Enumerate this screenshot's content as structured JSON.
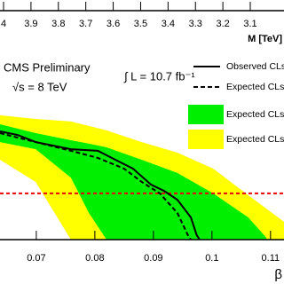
{
  "chart_data": {
    "type": "line",
    "xlabel": "β",
    "x2label": "M [TeV]",
    "experiment": "CMS Preliminary",
    "energy": "√s = 8 TeV",
    "luminosity": "∫ L = 10.7 fb⁻¹",
    "xlim": [
      0.0638,
      0.1123
    ],
    "xticks": [
      0.07,
      0.08,
      0.09,
      0.1,
      0.11
    ],
    "x2lim": [
      4.013,
      2.977
    ],
    "x2ticks": [
      4,
      3.9,
      3.8,
      3.7,
      3.6,
      3.5,
      3.4,
      3.3,
      3.2,
      3.1
    ],
    "ylim": [
      0,
      1
    ],
    "bands": [
      {
        "name": "Expected CLs ±",
        "color": "#ffff00",
        "x": [
          0.0638,
          0.0699,
          0.0759,
          0.082,
          0.088,
          0.0941,
          0.1002,
          0.1062,
          0.1123
        ],
        "low": [
          0.349,
          0.252,
          0,
          0,
          0,
          0,
          0,
          0,
          0
        ],
        "high": [
          0.543,
          0.527,
          0.516,
          0.477,
          0.426,
          0.38,
          0.31,
          0.194,
          0.078
        ]
      },
      {
        "name": "Expected CLs ±",
        "color": "#00ee00",
        "x": [
          0.0638,
          0.0699,
          0.0759,
          0.079,
          0.082,
          0.088,
          0.0941,
          0.1002,
          0.1062,
          0.1093
        ],
        "low": [
          0.426,
          0.395,
          0.271,
          0.116,
          0,
          0,
          0,
          0,
          0,
          0
        ],
        "high": [
          0.504,
          0.465,
          0.434,
          0.419,
          0.403,
          0.349,
          0.291,
          0.202,
          0.097,
          0.008
        ]
      }
    ],
    "series": [
      {
        "name": "Observed CLs",
        "color": "#000000",
        "dash": false,
        "x": [
          0.0638,
          0.0668,
          0.0699,
          0.0759,
          0.0805,
          0.0835,
          0.0865,
          0.0896,
          0.0918,
          0.0941,
          0.0964,
          0.0974,
          0.0979
        ],
        "values": [
          0.473,
          0.457,
          0.426,
          0.395,
          0.388,
          0.349,
          0.31,
          0.24,
          0.213,
          0.174,
          0.097,
          0.019,
          0
        ]
      },
      {
        "name": "Expected CLs",
        "color": "#000000",
        "dash": true,
        "x": [
          0.0638,
          0.0699,
          0.0759,
          0.0805,
          0.085,
          0.088,
          0.0911,
          0.0941,
          0.0959,
          0.0964
        ],
        "values": [
          0.465,
          0.426,
          0.388,
          0.357,
          0.31,
          0.252,
          0.202,
          0.116,
          0.019,
          0
        ]
      }
    ],
    "hline": {
      "value": 0.202,
      "color": "#ee0000"
    }
  }
}
